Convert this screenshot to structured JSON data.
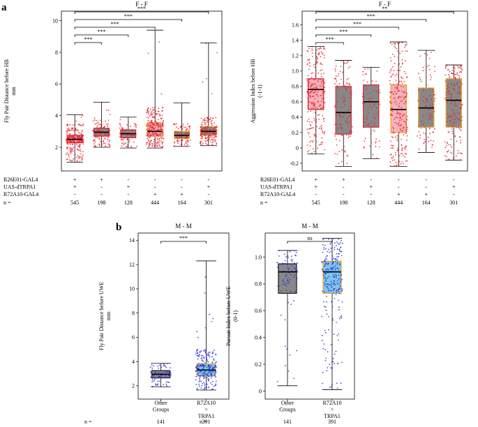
{
  "figure": {
    "panel_a_label": "a",
    "panel_b_label": "b",
    "colors": {
      "red_dot": "#e8232b",
      "blue_dot": "#2b2fd6",
      "gray_fill": "#888888",
      "gray_edge": "#5a5a5a",
      "pink_fill": "#f6b2bc",
      "red_edge": "#d62d3a",
      "orange_edge": "#f0a020",
      "light_blue_fill": "#7cc6ea"
    }
  },
  "chart_data": [
    {
      "id": "a-left",
      "type": "box",
      "title": "F - F",
      "ylabel": "Fly Pair Distance before HB",
      "ylabel2": "mm",
      "ylim": [
        0.5,
        10.6
      ],
      "yticks": [
        2,
        4,
        6,
        8,
        10
      ],
      "dot_color": "red",
      "boxes": [
        {
          "q1": 2.28,
          "median": 2.5,
          "q3": 2.75,
          "wlo": 1.05,
          "whi": 4.05,
          "fill": "pink",
          "edge": "red",
          "n": 545,
          "spread": 0.7
        },
        {
          "q1": 2.7,
          "median": 2.95,
          "q3": 3.2,
          "wlo": 2.0,
          "whi": 4.85,
          "fill": "gray",
          "edge": "red",
          "n": 198,
          "spread": 0.55
        },
        {
          "q1": 2.6,
          "median": 2.85,
          "q3": 3.1,
          "wlo": 1.95,
          "whi": 3.9,
          "fill": "gray",
          "edge": "red",
          "n": 128,
          "spread": 0.5
        },
        {
          "q1": 2.7,
          "median": 3.0,
          "q3": 3.55,
          "wlo": 1.95,
          "whi": 9.4,
          "fill": "pink",
          "edge": "orange",
          "n": 444,
          "spread": 1.0
        },
        {
          "q1": 2.55,
          "median": 2.75,
          "q3": 3.0,
          "wlo": 2.05,
          "whi": 4.8,
          "fill": "gray",
          "edge": "orange",
          "n": 164,
          "spread": 0.5
        },
        {
          "q1": 2.75,
          "median": 3.0,
          "q3": 3.3,
          "wlo": 2.1,
          "whi": 8.6,
          "fill": "gray",
          "edge": "orange",
          "n": 301,
          "spread": 0.6
        }
      ],
      "sig": [
        {
          "from": 0,
          "to": 1,
          "label": "***"
        },
        {
          "from": 0,
          "to": 2,
          "label": "***"
        },
        {
          "from": 0,
          "to": 3,
          "label": "***"
        },
        {
          "from": 0,
          "to": 4,
          "label": "***"
        },
        {
          "from": 0,
          "to": 5,
          "label": "***"
        }
      ],
      "genotype_rows": [
        {
          "label": "R26E01-GAL4",
          "values": [
            "+",
            "+",
            "-",
            "-",
            "-",
            "-"
          ]
        },
        {
          "label": "UAS-dTRPA1",
          "values": [
            "+",
            "-",
            "+",
            "-",
            "-",
            "+"
          ]
        },
        {
          "label": "R72A10-GAL4",
          "values": [
            "-",
            "-",
            "-",
            "+",
            "+",
            "-"
          ]
        }
      ],
      "n_label": "n ="
    },
    {
      "id": "a-right",
      "type": "box",
      "title": "F - F",
      "ylabel": "Aggression Index before HB",
      "ylabel2": "(-1-1)",
      "ylim": [
        -0.3,
        1.78
      ],
      "yticks": [
        -0.2,
        0,
        0.2,
        0.4,
        0.6,
        0.8,
        1.0,
        1.2,
        1.4,
        1.6
      ],
      "ytick_labels": [
        "-0.2",
        "0",
        "0.2",
        "0.4",
        "0.6",
        "0.8",
        "1.0",
        "1.2",
        "1.4",
        "1.6"
      ],
      "dot_color": "red",
      "boxes": [
        {
          "q1": 0.5,
          "median": 0.76,
          "q3": 0.9,
          "wlo": -0.08,
          "whi": 1.32,
          "fill": "pink",
          "edge": "red",
          "n": 545
        },
        {
          "q1": 0.18,
          "median": 0.46,
          "q3": 0.8,
          "wlo": -0.24,
          "whi": 1.14,
          "fill": "gray",
          "edge": "red",
          "n": 198
        },
        {
          "q1": 0.27,
          "median": 0.6,
          "q3": 0.82,
          "wlo": -0.14,
          "whi": 1.05,
          "fill": "gray",
          "edge": "red",
          "n": 128
        },
        {
          "q1": 0.2,
          "median": 0.5,
          "q3": 0.82,
          "wlo": -0.24,
          "whi": 1.38,
          "fill": "pink",
          "edge": "orange",
          "n": 444
        },
        {
          "q1": 0.27,
          "median": 0.52,
          "q3": 0.78,
          "wlo": -0.06,
          "whi": 1.27,
          "fill": "gray",
          "edge": "orange",
          "n": 164
        },
        {
          "q1": 0.27,
          "median": 0.62,
          "q3": 0.9,
          "wlo": -0.16,
          "whi": 1.08,
          "fill": "gray",
          "edge": "orange",
          "n": 301
        }
      ],
      "sig": [
        {
          "from": 0,
          "to": 1,
          "label": "***"
        },
        {
          "from": 0,
          "to": 2,
          "label": "***"
        },
        {
          "from": 0,
          "to": 3,
          "label": "***"
        },
        {
          "from": 0,
          "to": 4,
          "label": "***"
        },
        {
          "from": 0,
          "to": 5,
          "label": "**"
        }
      ],
      "genotype_rows": [
        {
          "label": "R26E01-GAL4",
          "values": [
            "+",
            "+",
            "-",
            "-",
            "-",
            "-"
          ]
        },
        {
          "label": "UAS-dTRPA1",
          "values": [
            "+",
            "-",
            "+",
            "-",
            "-",
            "+"
          ]
        },
        {
          "label": "R72A10-GAL4",
          "values": [
            "-",
            "-",
            "-",
            "+",
            "+",
            "-"
          ]
        }
      ],
      "n_label": "n ="
    },
    {
      "id": "b-left",
      "type": "box",
      "title": "M - M",
      "ylabel": "Fly Pair Distance before UWE",
      "ylabel2": "mm",
      "ylim": [
        0.9,
        14.6
      ],
      "yticks": [
        2,
        4,
        6,
        8,
        10,
        12,
        14
      ],
      "dot_color": "blue",
      "boxes": [
        {
          "q1": 2.65,
          "median": 2.95,
          "q3": 3.25,
          "wlo": 1.9,
          "whi": 3.85,
          "fill": "gray",
          "edge": "black",
          "n": 141,
          "label": [
            "Other",
            "Groups"
          ],
          "spread": 0.5
        },
        {
          "q1": 2.8,
          "median": 3.3,
          "q3": 3.8,
          "wlo": 1.65,
          "whi": 12.3,
          "fill": "lightblue",
          "edge": "orange",
          "n": 391,
          "label": [
            "R72A10",
            ">",
            "TRPA1"
          ],
          "spread": 1.2
        }
      ],
      "sig": [
        {
          "from": 0,
          "to": 1,
          "label": "***"
        }
      ],
      "n_label": "n ="
    },
    {
      "id": "b-right",
      "type": "box",
      "title": "M - M",
      "ylabel": "Pursuit Index before UWE",
      "ylabel2": "(0-1)",
      "ylim": [
        -0.06,
        1.18
      ],
      "yticks": [
        0,
        0.2,
        0.4,
        0.6,
        0.8,
        1.0
      ],
      "ytick_labels": [
        "0",
        "0.2",
        "0.4",
        "0.6",
        "0.8",
        "1.0"
      ],
      "dot_color": "blue",
      "boxes": [
        {
          "q1": 0.73,
          "median": 0.89,
          "q3": 0.95,
          "wlo": 0.04,
          "whi": 1.05,
          "fill": "gray",
          "edge": "black",
          "n": 141,
          "label": [
            "Other",
            "Groups"
          ]
        },
        {
          "q1": 0.73,
          "median": 0.89,
          "q3": 0.97,
          "wlo": 0.01,
          "whi": 1.14,
          "fill": "lightblue",
          "edge": "orange",
          "n": 391,
          "label": [
            "R72A10",
            ">",
            "TRPA1"
          ]
        }
      ],
      "sig": [
        {
          "from": 0,
          "to": 1,
          "label": "ns"
        }
      ],
      "n_label": "n ="
    }
  ]
}
